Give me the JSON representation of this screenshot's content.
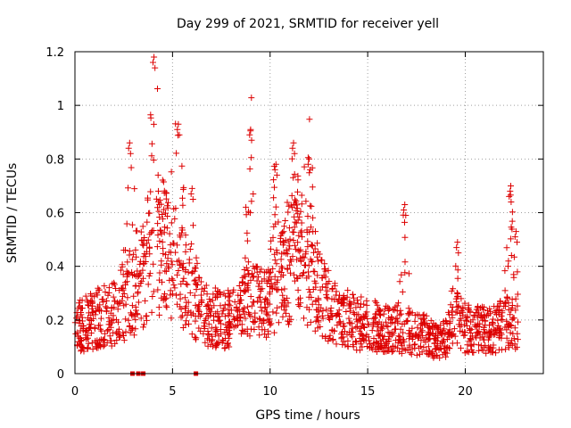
{
  "chart_data": {
    "type": "scatter",
    "title": "Day 299 of 2021, SRMTID for receiver yell",
    "xlabel": "GPS time / hours",
    "ylabel": "SRMTID / TECUs",
    "xlim": [
      0,
      24
    ],
    "ylim": [
      0,
      1.2
    ],
    "xticks": [
      0,
      5,
      10,
      15,
      20
    ],
    "xtick_labels": [
      "0",
      "5",
      "10",
      "15",
      "20"
    ],
    "yticks": [
      0,
      0.2,
      0.4,
      0.6,
      0.8,
      1.0,
      1.2
    ],
    "ytick_labels": [
      "0",
      "0.2",
      "0.4",
      "0.6",
      "0.8",
      "1",
      "1.2"
    ],
    "grid": true,
    "series_color": "#dd0000",
    "marker": "+",
    "gaps_at_zero": [
      2.95,
      3.25,
      3.5,
      6.2
    ],
    "envelope_note": "Dense scatter of SRMTID values from 0 to ~22.7 h; peaks near 4.1 h (~1.18), 5.3 h (~0.93), 9.0 h (~0.91), 11.2 h (~0.86), 16.9 h (~0.63), 19.6 h (~0.49), 22.3 h (~0.68)",
    "peaks": [
      {
        "x": 2.8,
        "y": 0.86
      },
      {
        "x": 4.05,
        "y": 1.18
      },
      {
        "x": 5.3,
        "y": 0.93
      },
      {
        "x": 6.0,
        "y": 0.69
      },
      {
        "x": 9.0,
        "y": 0.91
      },
      {
        "x": 10.3,
        "y": 0.78
      },
      {
        "x": 11.2,
        "y": 0.86
      },
      {
        "x": 12.0,
        "y": 0.8
      },
      {
        "x": 16.9,
        "y": 0.63
      },
      {
        "x": 19.6,
        "y": 0.49
      },
      {
        "x": 22.3,
        "y": 0.68
      },
      {
        "x": 22.6,
        "y": 0.53
      }
    ]
  }
}
